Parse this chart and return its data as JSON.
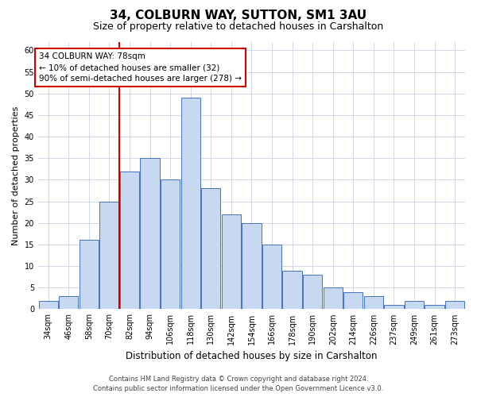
{
  "title": "34, COLBURN WAY, SUTTON, SM1 3AU",
  "subtitle": "Size of property relative to detached houses in Carshalton",
  "xlabel": "Distribution of detached houses by size in Carshalton",
  "ylabel": "Number of detached properties",
  "bar_labels": [
    "34sqm",
    "46sqm",
    "58sqm",
    "70sqm",
    "82sqm",
    "94sqm",
    "106sqm",
    "118sqm",
    "130sqm",
    "142sqm",
    "154sqm",
    "166sqm",
    "178sqm",
    "190sqm",
    "202sqm",
    "214sqm",
    "226sqm",
    "237sqm",
    "249sqm",
    "261sqm",
    "273sqm"
  ],
  "bar_values": [
    2,
    3,
    16,
    25,
    32,
    35,
    30,
    49,
    28,
    22,
    20,
    15,
    9,
    8,
    5,
    4,
    3,
    1,
    2,
    1,
    2
  ],
  "bar_color": "#c6d9f0",
  "bar_edge_color": "#4472c4",
  "vline_x": 3.5,
  "vline_color": "#cc0000",
  "ylim": [
    0,
    62
  ],
  "yticks": [
    0,
    5,
    10,
    15,
    20,
    25,
    30,
    35,
    40,
    45,
    50,
    55,
    60
  ],
  "annotation_title": "34 COLBURN WAY: 78sqm",
  "annotation_line1": "← 10% of detached houses are smaller (32)",
  "annotation_line2": "90% of semi-detached houses are larger (278) →",
  "annotation_box_color": "#ffffff",
  "annotation_box_edge": "#cc0000",
  "footer1": "Contains HM Land Registry data © Crown copyright and database right 2024.",
  "footer2": "Contains public sector information licensed under the Open Government Licence v3.0.",
  "bg_color": "#ffffff",
  "grid_color": "#d0d8e8",
  "title_fontsize": 11,
  "subtitle_fontsize": 9,
  "ylabel_fontsize": 8,
  "xlabel_fontsize": 8.5,
  "tick_fontsize": 7,
  "annotation_fontsize": 7.5,
  "footer_fontsize": 6
}
